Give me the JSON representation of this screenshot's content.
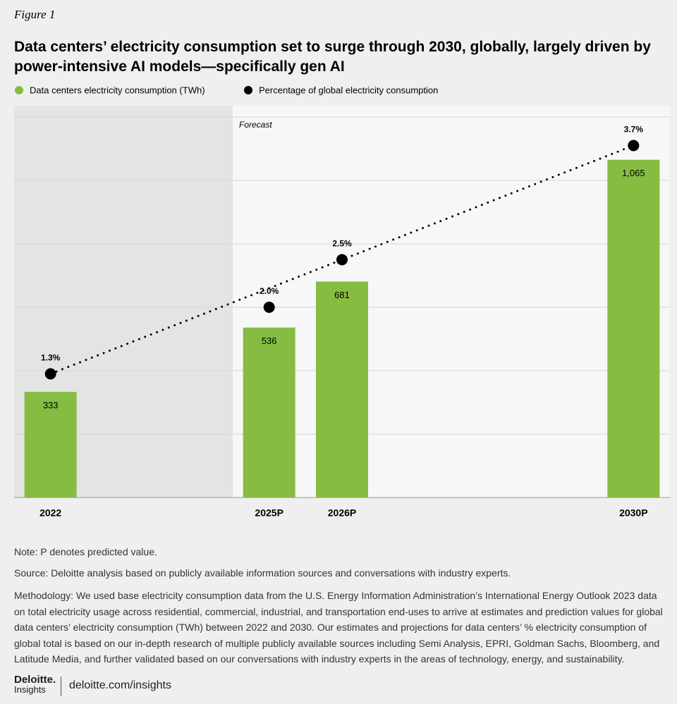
{
  "figure_label": "Figure 1",
  "chart_data": {
    "type": "bar",
    "title": "Data centers’ electricity consumption set to surge through 2030, globally, largely driven by power-intensive AI models—specifically gen AI",
    "x": [
      2022,
      2025,
      2026,
      2030
    ],
    "xlim": [
      2021.5,
      2030.5
    ],
    "xticks": [
      {
        "value": 2022,
        "label": "2022"
      },
      {
        "value": 2025,
        "label": "2025P"
      },
      {
        "value": 2026,
        "label": "2026P"
      },
      {
        "value": 2030,
        "label": "2030P"
      }
    ],
    "ylim": [
      0,
      1200
    ],
    "yticks": [
      0,
      200,
      400,
      600,
      800,
      1000,
      1200
    ],
    "y2lim": [
      0,
      4
    ],
    "grid": true,
    "forecast": {
      "start": 2024.5,
      "label": "Forecast"
    },
    "series": [
      {
        "name": "Data centers electricity consumption (TWh)",
        "type": "bar",
        "color": "#86bc42",
        "values": [
          333,
          536,
          681,
          1065
        ],
        "value_labels": [
          "333",
          "536",
          "681",
          "1,065"
        ]
      },
      {
        "name": "Percentage of global electricity consumption",
        "type": "scatter",
        "axis": "y2",
        "color": "#000000",
        "trendline": true,
        "values": [
          1.3,
          2.0,
          2.5,
          3.7
        ],
        "value_labels": [
          "1.3%",
          "2.0%",
          "2.5%",
          "3.7%"
        ]
      }
    ]
  },
  "notes": {
    "note": "Note: P denotes predicted value.",
    "source": "Source: Deloitte analysis based on publicly available information sources and conversations with industry experts.",
    "methodology": "Methodology: We used base electricity consumption data from the U.S. Energy Information Administration’s International Energy Outlook 2023 data on total electricity usage across residential, commercial, industrial, and transportation end-uses to arrive at estimates and prediction values for global data centers’ electricity consumption (TWh) between 2022 and 2030. Our estimates and projections for data centers’ % electricity consumption of global total is based on our in-depth research of multiple publicly available sources including Semi Analysis, EPRI, Goldman Sachs, Bloomberg, and Latitude Media, and further validated based on our conversations with industry experts in the areas of technology, energy, and sustainability."
  },
  "footer": {
    "brand": "Deloitte.",
    "sub_brand": "Insights",
    "url": "deloitte.com/insights"
  }
}
